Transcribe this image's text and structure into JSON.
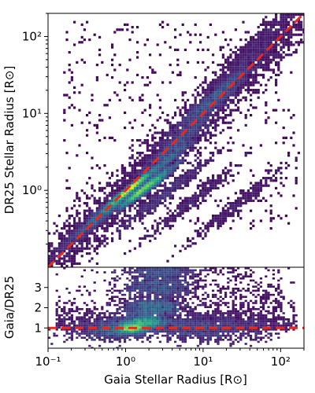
{
  "chart_data": [
    {
      "type": "heatmap",
      "panel": "main",
      "ylabel": "DR25 Stellar Radius [R⊙]",
      "xscale": "log",
      "yscale": "log",
      "xlim": [
        0.1,
        200
      ],
      "ylim": [
        0.1,
        200
      ],
      "x_ticks": [
        {
          "value": 0.1,
          "label": "10⁻¹"
        },
        {
          "value": 1,
          "label": "10⁰"
        },
        {
          "value": 10,
          "label": "10¹"
        },
        {
          "value": 100,
          "label": "10²"
        }
      ],
      "y_ticks": [
        {
          "value": 1,
          "label": "10⁰"
        },
        {
          "value": 10,
          "label": "10¹"
        },
        {
          "value": 100,
          "label": "10²"
        }
      ],
      "reference_line": {
        "style": "dashed",
        "color": "#e8291c",
        "relation": "y = x"
      },
      "density_regions": [
        {
          "x": 1.2,
          "y": 1.1,
          "density": 1.0
        },
        {
          "x": 1.6,
          "y": 1.0,
          "density": 0.95
        },
        {
          "x": 0.9,
          "y": 0.85,
          "density": 0.8
        },
        {
          "x": 2.2,
          "y": 1.2,
          "density": 0.75
        },
        {
          "x": 3.0,
          "y": 2.2,
          "density": 0.55
        },
        {
          "x": 0.7,
          "y": 0.65,
          "density": 0.5
        },
        {
          "x": 5.0,
          "y": 4.5,
          "density": 0.4
        },
        {
          "x": 11.0,
          "y": 11.0,
          "density": 0.35
        },
        {
          "x": 14.0,
          "y": 17.0,
          "density": 0.45
        },
        {
          "x": 0.45,
          "y": 0.45,
          "density": 0.3
        },
        {
          "x": 3.0,
          "y": 0.85,
          "density": 0.25
        },
        {
          "x": 30.0,
          "y": 40.0,
          "density": 0.15
        },
        {
          "x": 60.0,
          "y": 100.0,
          "density": 0.1
        },
        {
          "x": 0.3,
          "y": 0.3,
          "density": 0.15
        },
        {
          "x": 25.0,
          "y": 0.6,
          "density": 0.1
        },
        {
          "x": 7.0,
          "y": 0.7,
          "density": 0.12
        }
      ]
    },
    {
      "type": "heatmap",
      "panel": "ratio",
      "xlabel": "Gaia Stellar Radius [R⊙]",
      "ylabel": "Gaia/DR25",
      "xscale": "log",
      "xlim": [
        0.1,
        200
      ],
      "ylim": [
        0,
        4
      ],
      "x_ticks": [
        {
          "value": 0.1,
          "label": "10⁻¹"
        },
        {
          "value": 1,
          "label": "10⁰"
        },
        {
          "value": 10,
          "label": "10¹"
        },
        {
          "value": 100,
          "label": "10²"
        }
      ],
      "y_ticks": [
        {
          "value": 1,
          "label": "1"
        },
        {
          "value": 2,
          "label": "2"
        },
        {
          "value": 3,
          "label": "3"
        }
      ],
      "reference_line": {
        "style": "dashed",
        "color": "#e8291c",
        "y": 1
      },
      "density_regions": [
        {
          "x": 1.2,
          "y": 1.0,
          "density": 1.0
        },
        {
          "x": 1.8,
          "y": 1.3,
          "density": 0.85
        },
        {
          "x": 2.3,
          "y": 2.0,
          "density": 0.65
        },
        {
          "x": 2.6,
          "y": 3.0,
          "density": 0.5
        },
        {
          "x": 2.8,
          "y": 3.8,
          "density": 0.45
        },
        {
          "x": 0.8,
          "y": 0.95,
          "density": 0.55
        },
        {
          "x": 5.0,
          "y": 1.0,
          "density": 0.35
        },
        {
          "x": 12.0,
          "y": 1.0,
          "density": 0.3
        },
        {
          "x": 30.0,
          "y": 1.0,
          "density": 0.2
        },
        {
          "x": 0.5,
          "y": 0.9,
          "density": 0.25
        }
      ]
    }
  ],
  "colors": {
    "reference_line": "#e8291c",
    "colormap": [
      "#440154",
      "#472c7a",
      "#3b528b",
      "#2c728e",
      "#21918c",
      "#28ae80",
      "#5ec962",
      "#addc30",
      "#fde725"
    ]
  }
}
